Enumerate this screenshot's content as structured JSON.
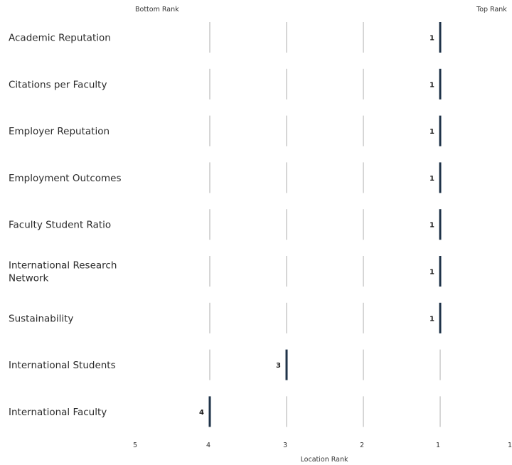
{
  "chart_data": {
    "type": "rank-lollipop",
    "corner_labels": {
      "left": "Bottom Rank",
      "right": "Top Rank"
    },
    "xlabel": "Location Rank",
    "x_ticks": [
      "5",
      "4",
      "3",
      "2",
      "1",
      "1"
    ],
    "xlim": [
      5,
      0
    ],
    "grid": true,
    "colors": {
      "marker": "#1f3349",
      "grid": "#d6d6d6"
    },
    "categories": [
      "Academic Reputation",
      "Citations per Faculty",
      "Employer Reputation",
      "Employment Outcomes",
      "Faculty Student Ratio",
      "International Research Network",
      "Sustainability",
      "International Students",
      "International Faculty"
    ],
    "values": [
      1,
      1,
      1,
      1,
      1,
      1,
      1,
      3,
      4
    ],
    "value_labels": [
      "1",
      "1",
      "1",
      "1",
      "1",
      "1",
      "1",
      "3",
      "4"
    ]
  }
}
